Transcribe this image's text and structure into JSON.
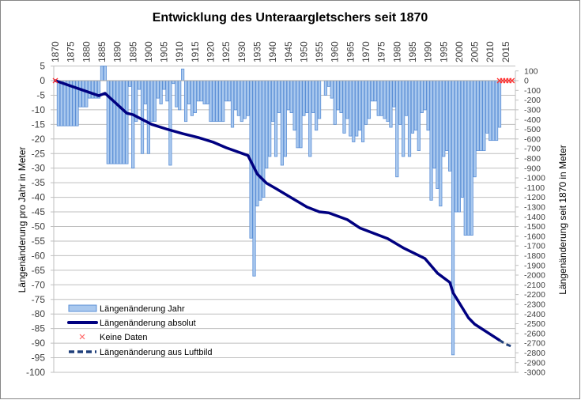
{
  "chart_data": {
    "type": "bar+line",
    "title": "Entwicklung des Unteraargletschers seit 1870",
    "ylabel_left": "Längenänderung  pro Jahr in Meter",
    "ylabel_right": "Längenänderung seit 1870 in Meter",
    "x_ticks": [
      1870,
      1875,
      1880,
      1885,
      1890,
      1895,
      1900,
      1905,
      1910,
      1915,
      1920,
      1925,
      1930,
      1935,
      1940,
      1945,
      1950,
      1955,
      1960,
      1965,
      1970,
      1975,
      1980,
      1985,
      1990,
      1995,
      2000,
      2005,
      2010,
      2015
    ],
    "xlim": [
      1870,
      2018
    ],
    "ylim_left": [
      -100,
      5
    ],
    "yticks_left_step": 5,
    "ylim_right": [
      -3000,
      100
    ],
    "yticks_right_step": 100,
    "grid": true,
    "legend_placement": "bottom-left",
    "colors": {
      "bar_fill": "#a9c8ee",
      "bar_stroke": "#5b8fd6",
      "line": "#000080",
      "dashed": "#1f3f7a",
      "marker": "#ff3333",
      "grid": "#bfbfbf"
    },
    "series": [
      {
        "name": "Längenänderung Jahr",
        "type": "bar",
        "axis": "left",
        "x": [
          1871,
          1872,
          1873,
          1874,
          1875,
          1876,
          1877,
          1878,
          1879,
          1880,
          1881,
          1882,
          1883,
          1884,
          1885,
          1886,
          1887,
          1888,
          1889,
          1890,
          1891,
          1892,
          1893,
          1894,
          1895,
          1896,
          1897,
          1898,
          1899,
          1900,
          1901,
          1902,
          1903,
          1904,
          1905,
          1906,
          1907,
          1908,
          1909,
          1910,
          1911,
          1912,
          1913,
          1914,
          1915,
          1916,
          1917,
          1918,
          1919,
          1920,
          1921,
          1922,
          1923,
          1924,
          1925,
          1926,
          1927,
          1928,
          1929,
          1930,
          1931,
          1932,
          1933,
          1934,
          1935,
          1936,
          1937,
          1938,
          1939,
          1940,
          1941,
          1942,
          1943,
          1944,
          1945,
          1946,
          1947,
          1948,
          1949,
          1950,
          1951,
          1952,
          1953,
          1954,
          1955,
          1956,
          1957,
          1958,
          1959,
          1960,
          1961,
          1962,
          1963,
          1964,
          1965,
          1966,
          1967,
          1968,
          1969,
          1970,
          1971,
          1972,
          1973,
          1974,
          1975,
          1976,
          1977,
          1978,
          1979,
          1980,
          1981,
          1982,
          1983,
          1984,
          1985,
          1986,
          1987,
          1988,
          1989,
          1990,
          1991,
          1992,
          1993,
          1994,
          1995,
          1996,
          1997,
          1998,
          1999,
          2000,
          2001,
          2002,
          2003,
          2004,
          2005,
          2006,
          2007,
          2008,
          2009,
          2010,
          2011,
          2012,
          2013
        ],
        "values": [
          -15.5,
          -15.5,
          -15.5,
          -15.5,
          -15.5,
          -15.5,
          -15.5,
          -9,
          -9,
          -9,
          -6,
          -6,
          -6,
          -6,
          5,
          5,
          -28.5,
          -28.5,
          -28.5,
          -28.5,
          -28.5,
          -28.5,
          -28.5,
          -2,
          -30,
          -14,
          -3,
          -25,
          -8,
          -25,
          -14,
          -14,
          -6,
          -8,
          -3,
          -7,
          -29,
          -1,
          -9,
          -10,
          4,
          -14,
          -8,
          -12,
          -11,
          -7,
          -7,
          -8,
          -8,
          -14,
          -14,
          -14,
          -14,
          -14,
          -7,
          -7,
          -16,
          -10,
          -12,
          -14,
          -13,
          -12,
          -54,
          -67,
          -43,
          -41,
          -40,
          -30,
          -26,
          -14,
          -26,
          -11,
          -29,
          -26,
          -10,
          -11,
          -17,
          -23,
          -23,
          -12,
          -11,
          -26,
          -11,
          -17,
          -13,
          0,
          -5,
          -2,
          -6,
          -15,
          -10,
          -11,
          -18,
          -13,
          -19,
          -21,
          -19,
          -17,
          -21,
          -15,
          -13,
          -7,
          -7,
          -12,
          -12,
          -13,
          -14,
          -16,
          -9,
          -33,
          -15,
          -26,
          -12,
          -26,
          -18,
          -17,
          -24,
          -11,
          -10,
          -17,
          -41,
          -30,
          -37,
          -43,
          -26,
          -24,
          -31,
          -94,
          -45,
          -45,
          -40,
          -53,
          -53,
          -53,
          -33,
          -24,
          -24,
          -24,
          -18,
          -20.5,
          -20.5,
          -20.5,
          -16
        ]
      },
      {
        "name": "Längenänderung absolut",
        "type": "line",
        "axis": "right",
        "x": [
          1870,
          1884,
          1886,
          1893,
          1895,
          1901,
          1906,
          1911,
          1916,
          1921,
          1925,
          1932,
          1935,
          1938,
          1941,
          1946,
          1951,
          1955,
          1958,
          1964,
          1968,
          1977,
          1982,
          1989,
          1993,
          1997,
          1998,
          2003,
          2005,
          2013
        ],
        "values": [
          0,
          -155,
          -130,
          -335,
          -350,
          -450,
          -500,
          -545,
          -585,
          -635,
          -690,
          -770,
          -960,
          -1055,
          -1110,
          -1205,
          -1300,
          -1350,
          -1360,
          -1430,
          -1515,
          -1625,
          -1720,
          -1830,
          -1980,
          -2075,
          -2180,
          -2440,
          -2505,
          -2670
        ]
      },
      {
        "name": "Keine Daten",
        "type": "scatter",
        "axis": "right",
        "x": [
          1870,
          2013,
          2014,
          2015,
          2016,
          2017
        ],
        "values": [
          0,
          0,
          0,
          0,
          0,
          0
        ]
      },
      {
        "name": "Längenänderung aus Luftbild",
        "type": "line-dashed",
        "axis": "right",
        "x": [
          2013,
          2015,
          2017
        ],
        "values": [
          -2670,
          -2710,
          -2735
        ]
      }
    ]
  }
}
